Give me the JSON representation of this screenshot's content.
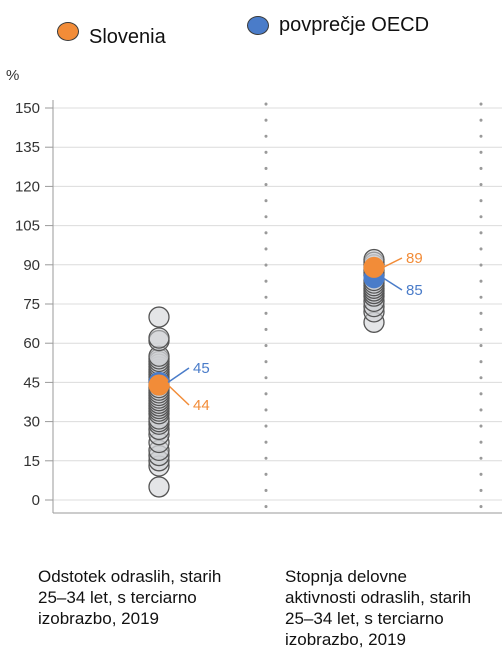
{
  "legend": [
    {
      "label": "Slovenia",
      "color": "#F28C38"
    },
    {
      "label": "povprečje OECD",
      "color": "#4A7CC9"
    }
  ],
  "chart_data": {
    "type": "scatter",
    "ylabel": "%",
    "ylim": [
      0,
      150
    ],
    "yticks": [
      0,
      15,
      30,
      45,
      60,
      75,
      90,
      105,
      120,
      135,
      150
    ],
    "grid": true,
    "categories": [
      "Odstotek odraslih, starih\n25–34 let, s terciarno\nizobrazbo, 2019",
      "Stopnja delovne\naktivnosti odraslih, starih\n25–34 let, s terciarno\nizobrazbo, 2019"
    ],
    "country_values": [
      [
        5,
        13,
        15,
        17,
        19,
        22,
        25,
        27,
        29,
        30,
        31,
        33,
        34,
        35,
        36,
        37,
        38,
        39,
        40,
        41,
        42,
        43,
        44,
        45,
        46,
        47,
        48,
        49,
        50,
        51,
        52,
        53,
        54,
        55,
        61,
        62,
        70
      ],
      [
        68,
        72,
        74,
        76,
        78,
        79,
        80,
        81,
        82,
        83,
        84,
        86,
        87,
        88,
        89,
        90,
        91,
        92
      ]
    ],
    "series": [
      {
        "name": "Slovenia",
        "values": [
          44,
          89
        ],
        "color": "#F28C38",
        "labels": [
          "44",
          "89"
        ]
      },
      {
        "name": "povprečje OECD",
        "values": [
          45,
          85
        ],
        "color": "#4A7CC9",
        "labels": [
          "45",
          "85"
        ]
      }
    ]
  }
}
